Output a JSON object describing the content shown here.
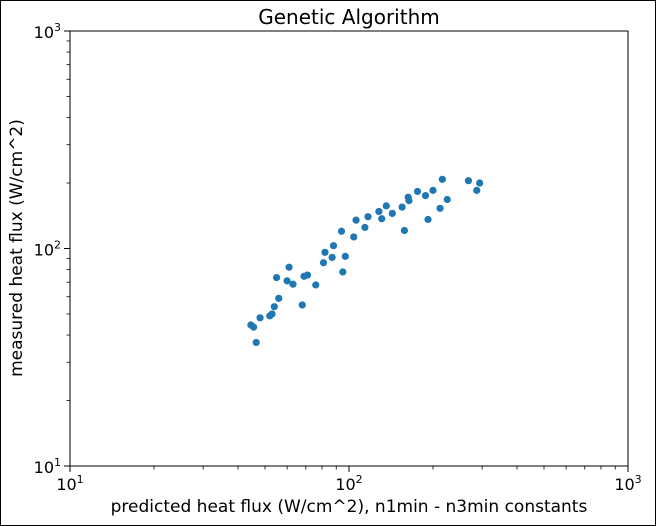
{
  "chart_data": {
    "type": "scatter",
    "title": "Genetic Algorithm",
    "xlabel": "predicted heat flux (W/cm^2), n1min - n3min constants",
    "ylabel": "measured heat flux (W/cm^2)",
    "xscale": "log",
    "yscale": "log",
    "xlim": [
      10,
      1000
    ],
    "ylim": [
      10,
      1000
    ],
    "grid": false,
    "legend": "none",
    "marker_color": "#1f77b4",
    "x_ticks": [
      10,
      100,
      1000
    ],
    "y_ticks": [
      10,
      100,
      1000
    ],
    "x_tick_labels": [
      {
        "base": "10",
        "exp": "1"
      },
      {
        "base": "10",
        "exp": "2"
      },
      {
        "base": "10",
        "exp": "3"
      }
    ],
    "y_tick_labels": [
      {
        "base": "10",
        "exp": "1"
      },
      {
        "base": "10",
        "exp": "2"
      },
      {
        "base": "10",
        "exp": "3"
      }
    ],
    "points": [
      [
        44.5,
        44.5
      ],
      [
        45.5,
        43.5
      ],
      [
        46.5,
        37.0
      ],
      [
        48.0,
        48.0
      ],
      [
        52.0,
        49.0
      ],
      [
        53.0,
        50.0
      ],
      [
        54.0,
        54.0
      ],
      [
        55.0,
        73.5
      ],
      [
        56.0,
        59.0
      ],
      [
        60.0,
        71.0
      ],
      [
        61.0,
        82.0
      ],
      [
        63.0,
        68.5
      ],
      [
        68.0,
        55.0
      ],
      [
        69.0,
        74.5
      ],
      [
        71.0,
        75.5
      ],
      [
        76.0,
        68.0
      ],
      [
        81.0,
        86.0
      ],
      [
        82.0,
        96.0
      ],
      [
        87.0,
        91.0
      ],
      [
        88.0,
        103.0
      ],
      [
        94.0,
        120.0
      ],
      [
        95.0,
        78.0
      ],
      [
        97.0,
        92.0
      ],
      [
        104.0,
        113.0
      ],
      [
        106.0,
        135.0
      ],
      [
        114.0,
        125.0
      ],
      [
        117.0,
        140.0
      ],
      [
        128.0,
        148.0
      ],
      [
        131.0,
        137.0
      ],
      [
        136.0,
        157.0
      ],
      [
        143.0,
        145.0
      ],
      [
        155.0,
        155.0
      ],
      [
        158.0,
        121.0
      ],
      [
        163.0,
        172.0
      ],
      [
        164.0,
        166.0
      ],
      [
        176.0,
        183.0
      ],
      [
        188.0,
        175.0
      ],
      [
        192.0,
        136.0
      ],
      [
        200.0,
        185.0
      ],
      [
        212.0,
        153.0
      ],
      [
        216.0,
        208.0
      ],
      [
        225.0,
        168.0
      ],
      [
        268.0,
        205.0
      ],
      [
        287.0,
        185.0
      ],
      [
        294.0,
        200.0
      ]
    ]
  }
}
